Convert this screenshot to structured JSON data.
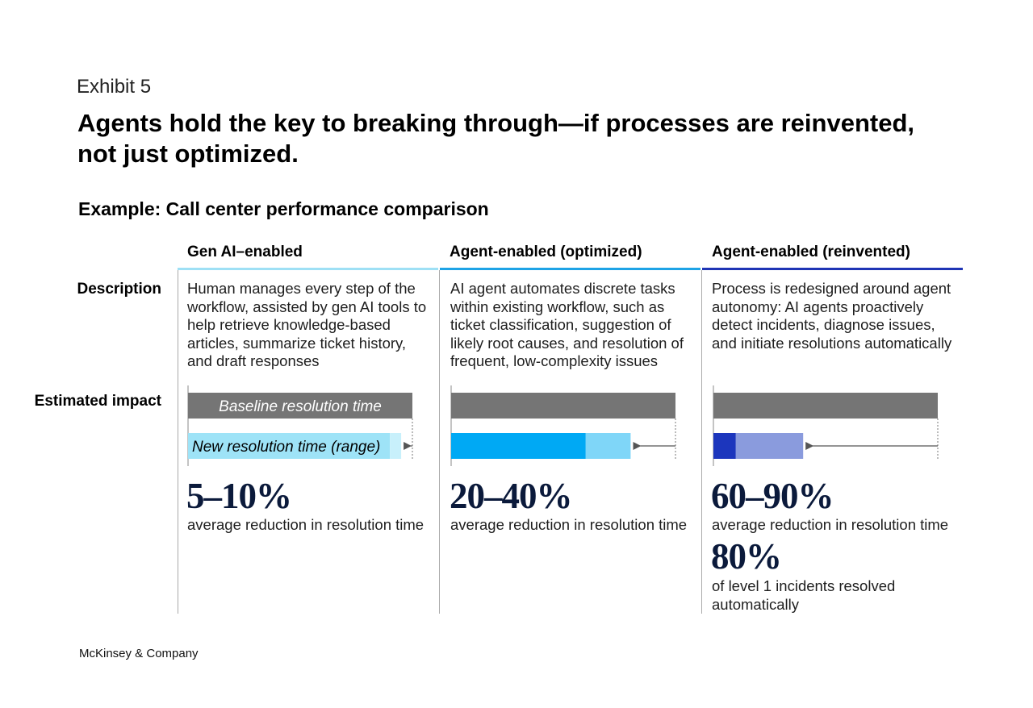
{
  "exhibit": "Exhibit 5",
  "title": "Agents hold the key to breaking through—if processes are reinvented, not just optimized.",
  "subtitle": "Example: Call center performance comparison",
  "row_labels": {
    "description": "Description",
    "impact": "Estimated impact"
  },
  "columns": [
    {
      "header": "Gen AI–enabled",
      "rule_color": "#9ee0f5",
      "description": "Human manages every step of the workflow, assisted by gen AI tools to help retrieve knowledge-based articles, summarize ticket history, and draft responses",
      "stats": [
        {
          "value": "5–10%",
          "text": "average reduction in resolution time"
        }
      ]
    },
    {
      "header": "Agent-enabled (optimized)",
      "rule_color": "#1ea3e6",
      "description": "AI agent automates discrete tasks within existing workflow, such as ticket classification, suggestion of likely root causes, and resolution of frequent, low-complexity issues",
      "stats": [
        {
          "value": "20–40%",
          "text": "average reduction in resolution time"
        }
      ]
    },
    {
      "header": "Agent-enabled (reinvented)",
      "rule_color": "#1f35b5",
      "description": "Process is redesigned around agent autonomy: AI agents proactively detect incidents, diagnose issues, and initiate resolutions automatically",
      "stats": [
        {
          "value": "60–90%",
          "text": "average reduction in resolution time"
        },
        {
          "value": "80%",
          "text": "of level 1 incidents resolved automatically"
        }
      ]
    }
  ],
  "chart_data": {
    "type": "bar",
    "title": "",
    "unit": "% reduction in resolution time (baseline = 100%)",
    "baseline_label": "Baseline resolution time",
    "range_label": "New resolution time (range)",
    "baseline": 100,
    "series": [
      {
        "category": "Gen AI–enabled",
        "reduction_min": 5,
        "reduction_max": 10,
        "dark_color": "#9ee3f7",
        "light_color": "#c8f0fb"
      },
      {
        "category": "Agent-enabled (optimized)",
        "reduction_min": 20,
        "reduction_max": 40,
        "dark_color": "#00a9f4",
        "light_color": "#7fd6f8"
      },
      {
        "category": "Agent-enabled (reinvented)",
        "reduction_min": 60,
        "reduction_max": 90,
        "dark_color": "#1c36bd",
        "light_color": "#8a9bdd"
      }
    ],
    "baseline_color": "#757575"
  },
  "footer": "McKinsey & Company"
}
